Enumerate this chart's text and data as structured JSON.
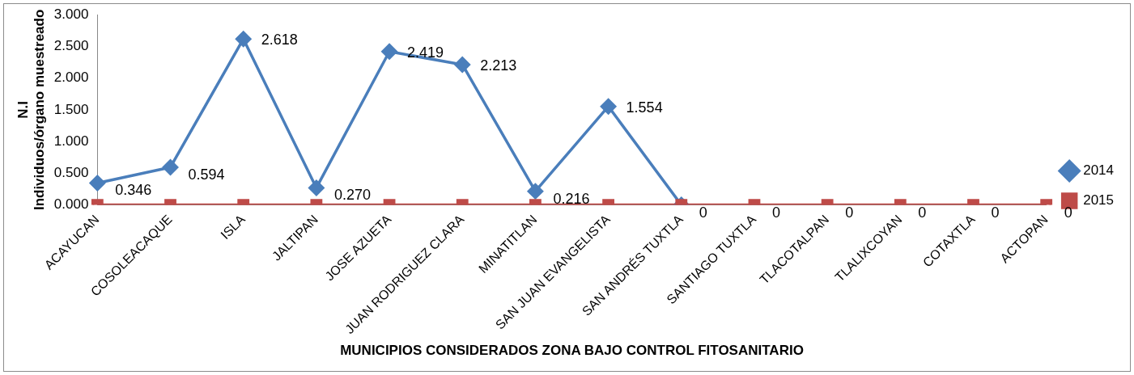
{
  "chart_data": {
    "type": "line",
    "xlabel": "MUNICIPIOS CONSIDERADOS ZONA BAJO CONTROL FITOSANITARIO",
    "ylabel": "N.I\nIndividuos/órgano muestreado",
    "categories": [
      "ACAYUCAN",
      "COSOLEACAQUE",
      "ISLA",
      "JALTIPAN",
      "JOSE AZUETA",
      "JUAN RODRIGUEZ CLARA",
      "MINATITLAN",
      "SAN JUAN EVANGELISTA",
      "SAN ANDRÉS TUXTLA",
      "SANTIAGO TUXTLA",
      "TLACOTALPAN",
      "TLALIXCOYAN",
      "COTAXTLA",
      "ACTOPAN"
    ],
    "series": [
      {
        "name": "2014",
        "color": "#4a7ebb",
        "marker": "diamond",
        "values": [
          0.346,
          0.594,
          2.618,
          0.27,
          2.419,
          2.213,
          0.216,
          1.554,
          0,
          null,
          null,
          null,
          null,
          null
        ],
        "value_labels": [
          "0.346",
          "0.594",
          "2.618",
          "0.270",
          "2.419",
          "2.213",
          "0.216",
          "1.554",
          "0",
          null,
          null,
          null,
          null,
          null
        ]
      },
      {
        "name": "2015",
        "color": "#be4b48",
        "marker": "square",
        "values": [
          0,
          0,
          0,
          0,
          0,
          0,
          0,
          0,
          0,
          0,
          0,
          0,
          0,
          0
        ],
        "value_labels": [
          null,
          null,
          null,
          null,
          null,
          null,
          null,
          null,
          null,
          "0",
          "0",
          "0",
          "0",
          "0"
        ]
      }
    ],
    "ylim": [
      0,
      3
    ],
    "yticks": [
      {
        "value": 0,
        "label": "0.000"
      },
      {
        "value": 0.5,
        "label": "0.500"
      },
      {
        "value": 1,
        "label": "1.000"
      },
      {
        "value": 1.5,
        "label": "1.500"
      },
      {
        "value": 2,
        "label": "2.000"
      },
      {
        "value": 2.5,
        "label": "2.500"
      },
      {
        "value": 3,
        "label": "3.000"
      }
    ],
    "grid": false,
    "legend": "right",
    "line_style": "solid"
  }
}
